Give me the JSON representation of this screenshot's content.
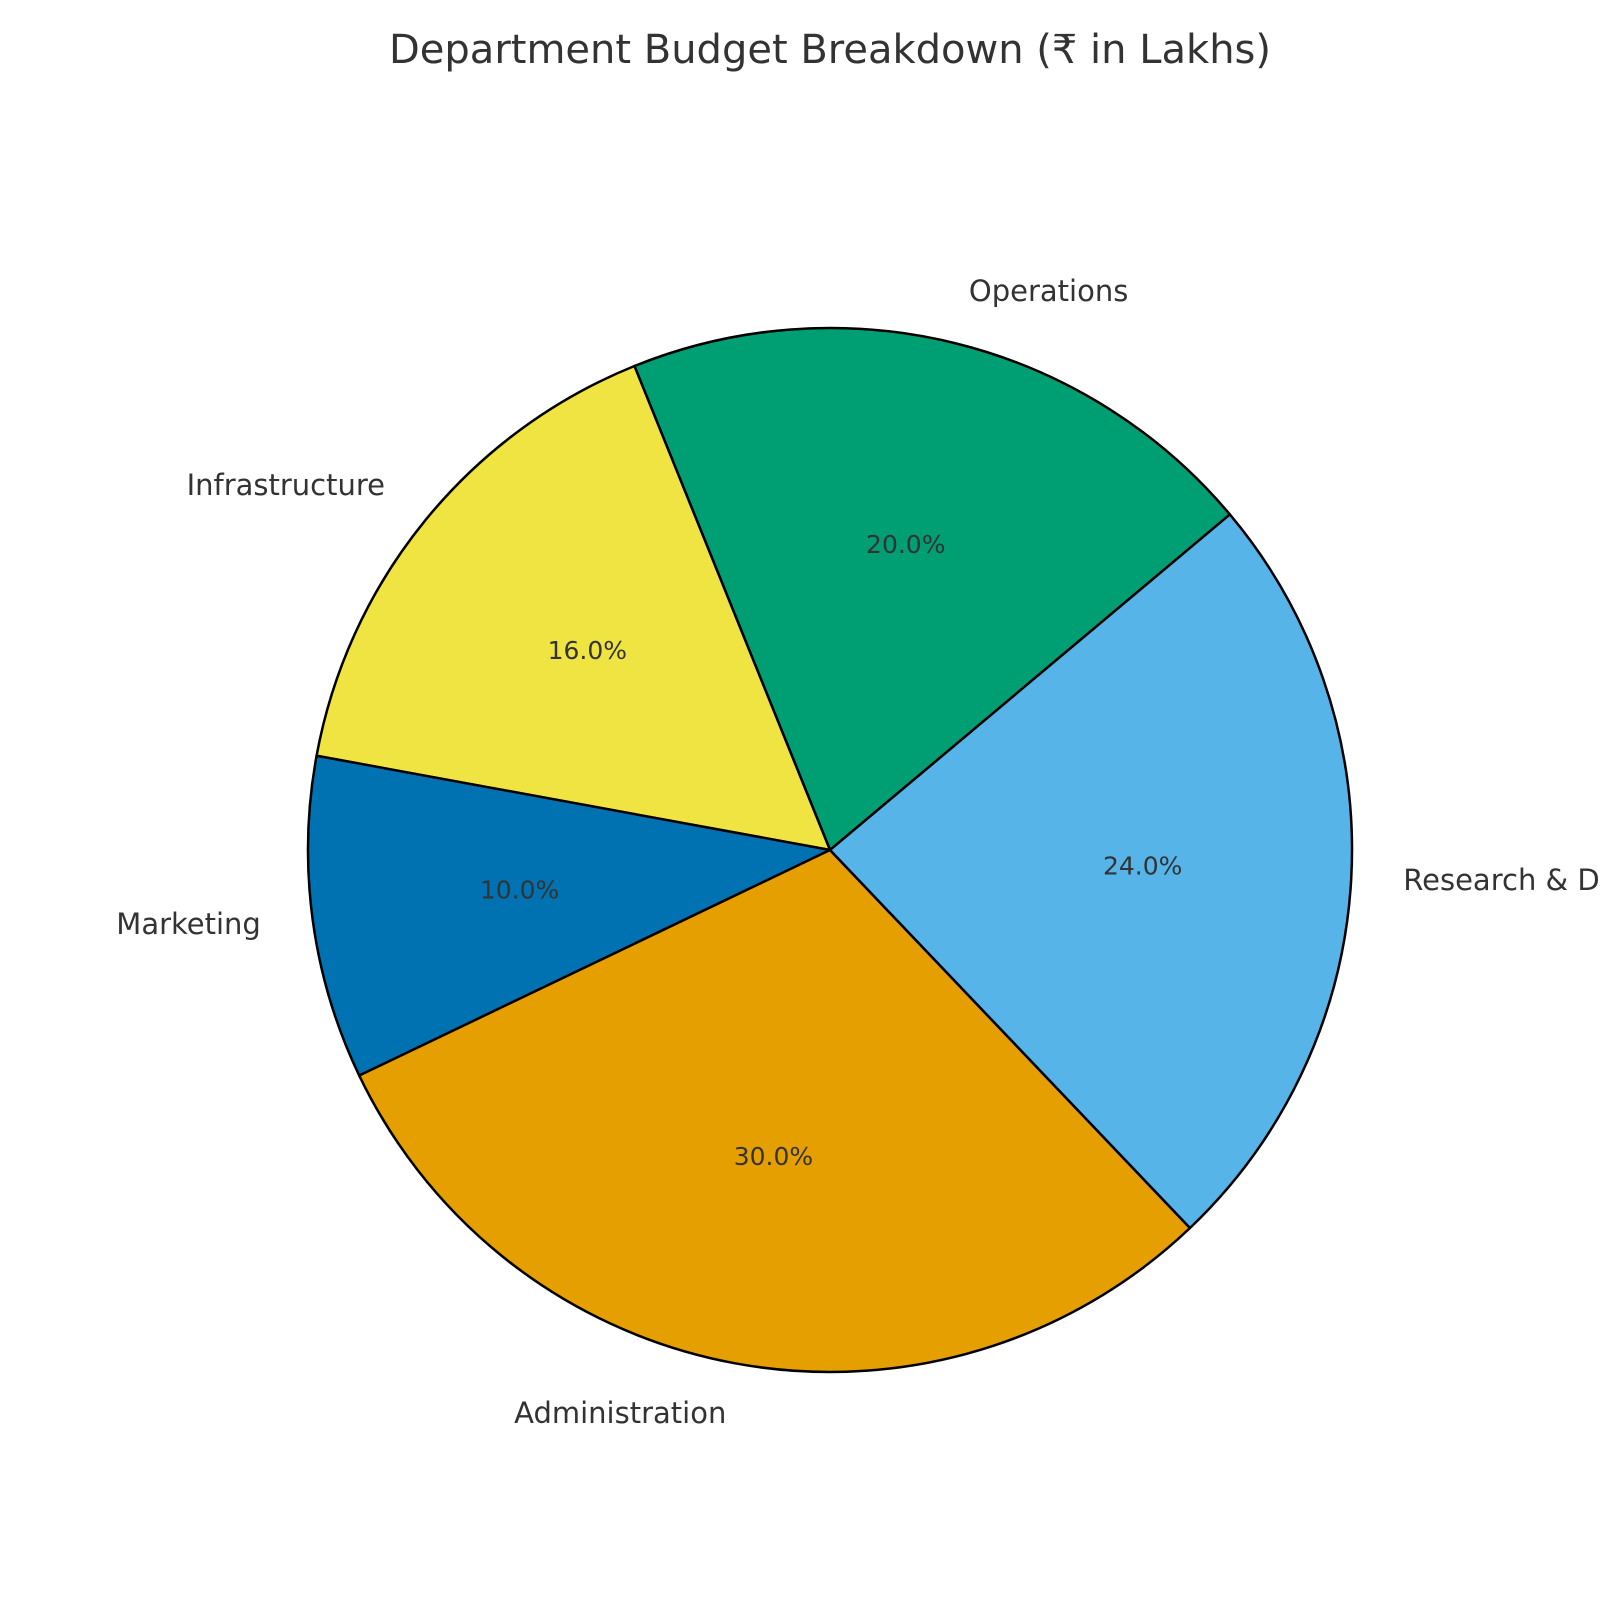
{
  "chart_data": {
    "type": "pie",
    "title": "Department Budget Breakdown (₹ in Lakhs)",
    "start_angle_deg": 40,
    "direction": "counterclockwise",
    "slices": [
      {
        "label": "Operations",
        "percent": 20.0,
        "pct_label": "20.0%",
        "color": "#009E73"
      },
      {
        "label": "Infrastructure",
        "percent": 16.0,
        "pct_label": "16.0%",
        "color": "#F0E442"
      },
      {
        "label": "Marketing",
        "percent": 10.0,
        "pct_label": "10.0%",
        "color": "#0072B2"
      },
      {
        "label": "Administration",
        "percent": 30.0,
        "pct_label": "30.0%",
        "color": "#E69F00"
      },
      {
        "label": "Research & Dev",
        "percent": 24.0,
        "pct_label": "24.0%",
        "color": "#56B4E9"
      }
    ]
  }
}
